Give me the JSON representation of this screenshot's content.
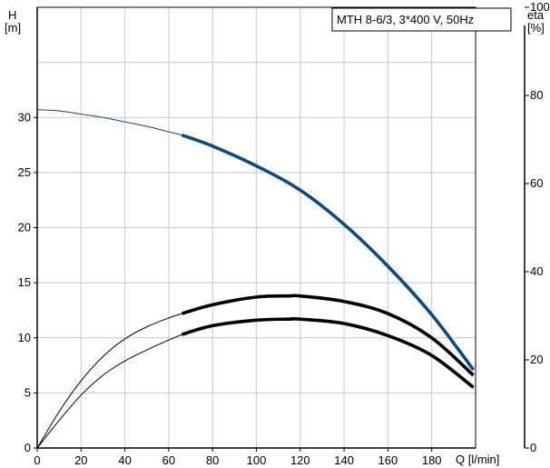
{
  "chart_data": {
    "type": "line",
    "title": "MTH 8-6/3, 3*400 V, 50Hz",
    "x_axis": {
      "label": "Q [l/min]",
      "range": [
        0,
        200
      ],
      "ticks": [
        0,
        20,
        40,
        60,
        80,
        100,
        120,
        140,
        160,
        180
      ],
      "grid": [
        0,
        20,
        40,
        60,
        80,
        100,
        120,
        140,
        160,
        180,
        200
      ]
    },
    "y_left": {
      "label_line1": "H",
      "label_line2": "[m]",
      "range": [
        0,
        40
      ],
      "ticks": [
        0,
        5,
        10,
        15,
        20,
        25,
        30
      ],
      "grid": [
        0,
        5,
        10,
        15,
        20,
        25,
        30,
        35,
        40
      ]
    },
    "y_right": {
      "label_line1": "eta",
      "label_line2": "[%]",
      "range": [
        0,
        100
      ],
      "ticks": [
        0,
        20,
        40,
        60,
        80,
        100
      ]
    },
    "grid": true,
    "series": [
      {
        "axis": "left",
        "color": "#0b4a86",
        "thin_x": [
          0,
          10,
          20,
          30,
          40,
          50,
          60,
          66
        ],
        "thin_y": [
          30.7,
          30.6,
          30.3,
          30.0,
          29.6,
          29.2,
          28.7,
          28.4
        ],
        "thick_x": [
          66,
          80,
          100,
          120,
          140,
          160,
          180,
          199
        ],
        "thick_y": [
          28.4,
          27.4,
          25.6,
          23.4,
          20.3,
          16.5,
          12.1,
          7.1
        ]
      },
      {
        "axis": "left",
        "color": "#000000",
        "thin_x": [
          0,
          10,
          20,
          30,
          40,
          50,
          60,
          66
        ],
        "thin_y": [
          0,
          3.3,
          6.1,
          8.3,
          9.9,
          11.0,
          11.8,
          12.2
        ],
        "thick_x": [
          66,
          80,
          100,
          115,
          120,
          140,
          160,
          180,
          199
        ],
        "thick_y": [
          12.2,
          13.0,
          13.7,
          13.8,
          13.8,
          13.3,
          12.2,
          10.0,
          6.6
        ]
      },
      {
        "axis": "left",
        "color": "#000000",
        "thin_x": [
          0,
          10,
          20,
          30,
          40,
          50,
          60,
          66
        ],
        "thin_y": [
          0,
          2.5,
          4.8,
          6.6,
          7.9,
          8.9,
          9.8,
          10.3
        ],
        "thick_x": [
          66,
          80,
          100,
          115,
          120,
          140,
          160,
          180,
          199
        ],
        "thick_y": [
          10.3,
          11.1,
          11.6,
          11.7,
          11.7,
          11.3,
          10.2,
          8.4,
          5.5
        ]
      }
    ]
  }
}
